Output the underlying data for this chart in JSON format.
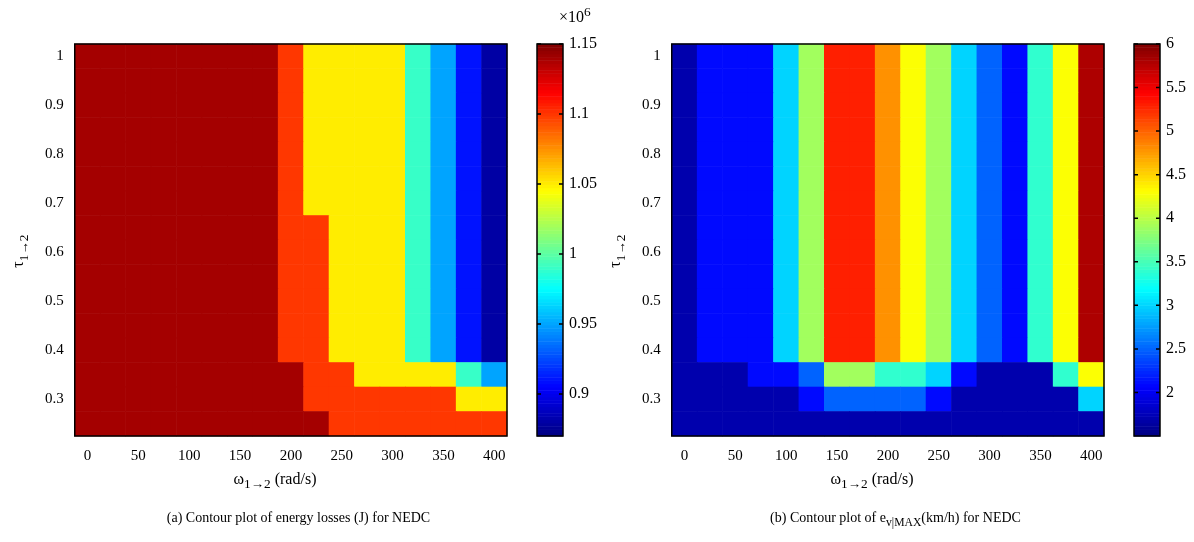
{
  "chart_data": [
    {
      "type": "heatmap",
      "title": "(a)  Contour plot of energy losses (J) for NEDC",
      "xlabel": "ω$_{1→2}$ (rad/s)",
      "ylabel": "τ$_{1→2}$",
      "clabel": "×10$^{6}$",
      "categories": [
        "0",
        null,
        "50",
        null,
        "100",
        null,
        "150",
        null,
        "200",
        null,
        "250",
        null,
        "300",
        null,
        "350",
        null,
        "400"
      ],
      "y_categories": [
        "1",
        null,
        "0.9",
        null,
        "0.8",
        null,
        "0.7",
        null,
        "0.6",
        null,
        "0.5",
        null,
        "0.4",
        null,
        "0.3",
        null
      ],
      "clim": [
        0.87,
        1.15
      ],
      "cticks": [
        0.9,
        0.95,
        1,
        1.05,
        1.1,
        1.15
      ],
      "cells": [
        [
          1.14,
          1.14,
          1.14,
          1.14,
          1.14,
          1.14,
          1.14,
          1.14,
          1.1,
          1.05,
          1.05,
          1.05,
          1.05,
          0.99,
          0.95,
          0.91,
          0.88
        ],
        [
          1.14,
          1.14,
          1.14,
          1.14,
          1.14,
          1.14,
          1.14,
          1.14,
          1.1,
          1.05,
          1.05,
          1.05,
          1.05,
          0.99,
          0.95,
          0.91,
          0.88
        ],
        [
          1.14,
          1.14,
          1.14,
          1.14,
          1.14,
          1.14,
          1.14,
          1.14,
          1.1,
          1.05,
          1.05,
          1.05,
          1.05,
          0.99,
          0.95,
          0.91,
          0.88
        ],
        [
          1.14,
          1.14,
          1.14,
          1.14,
          1.14,
          1.14,
          1.14,
          1.14,
          1.1,
          1.05,
          1.05,
          1.05,
          1.05,
          0.99,
          0.95,
          0.91,
          0.88
        ],
        [
          1.14,
          1.14,
          1.14,
          1.14,
          1.14,
          1.14,
          1.14,
          1.14,
          1.1,
          1.05,
          1.05,
          1.05,
          1.05,
          0.99,
          0.95,
          0.91,
          0.88
        ],
        [
          1.14,
          1.14,
          1.14,
          1.14,
          1.14,
          1.14,
          1.14,
          1.14,
          1.1,
          1.05,
          1.05,
          1.05,
          1.05,
          0.99,
          0.95,
          0.91,
          0.88
        ],
        [
          1.14,
          1.14,
          1.14,
          1.14,
          1.14,
          1.14,
          1.14,
          1.14,
          1.1,
          1.05,
          1.05,
          1.05,
          1.05,
          0.99,
          0.95,
          0.91,
          0.88
        ],
        [
          1.14,
          1.14,
          1.14,
          1.14,
          1.14,
          1.14,
          1.14,
          1.14,
          1.1,
          1.1,
          1.05,
          1.05,
          1.05,
          0.99,
          0.95,
          0.91,
          0.88
        ],
        [
          1.14,
          1.14,
          1.14,
          1.14,
          1.14,
          1.14,
          1.14,
          1.14,
          1.1,
          1.1,
          1.05,
          1.05,
          1.05,
          0.99,
          0.95,
          0.91,
          0.88
        ],
        [
          1.14,
          1.14,
          1.14,
          1.14,
          1.14,
          1.14,
          1.14,
          1.14,
          1.1,
          1.1,
          1.05,
          1.05,
          1.05,
          0.99,
          0.95,
          0.91,
          0.88
        ],
        [
          1.14,
          1.14,
          1.14,
          1.14,
          1.14,
          1.14,
          1.14,
          1.14,
          1.1,
          1.1,
          1.05,
          1.05,
          1.05,
          0.99,
          0.95,
          0.91,
          0.88
        ],
        [
          1.14,
          1.14,
          1.14,
          1.14,
          1.14,
          1.14,
          1.14,
          1.14,
          1.1,
          1.1,
          1.05,
          1.05,
          1.05,
          0.99,
          0.95,
          0.91,
          0.88
        ],
        [
          1.14,
          1.14,
          1.14,
          1.14,
          1.14,
          1.14,
          1.14,
          1.14,
          1.1,
          1.1,
          1.05,
          1.05,
          1.05,
          0.99,
          0.95,
          0.91,
          0.88
        ],
        [
          1.14,
          1.14,
          1.14,
          1.14,
          1.14,
          1.14,
          1.14,
          1.14,
          1.14,
          1.1,
          1.1,
          1.05,
          1.05,
          1.05,
          1.05,
          0.99,
          0.95
        ],
        [
          1.14,
          1.14,
          1.14,
          1.14,
          1.14,
          1.14,
          1.14,
          1.14,
          1.14,
          1.1,
          1.1,
          1.1,
          1.1,
          1.1,
          1.1,
          1.05,
          1.05
        ],
        [
          1.14,
          1.14,
          1.14,
          1.14,
          1.14,
          1.14,
          1.14,
          1.14,
          1.14,
          1.14,
          1.1,
          1.1,
          1.1,
          1.1,
          1.1,
          1.1,
          1.1
        ]
      ]
    },
    {
      "type": "heatmap",
      "title": "(b)  Contour plot of e$_{v|MAX}$(km/h) for NEDC",
      "xlabel": "ω$_{1→2}$ (rad/s)",
      "ylabel": "τ$_{1→2}$",
      "categories": [
        "0",
        null,
        "50",
        null,
        "100",
        null,
        "150",
        null,
        "200",
        null,
        "250",
        null,
        "300",
        null,
        "350",
        null,
        "400"
      ],
      "y_categories": [
        "1",
        null,
        "0.9",
        null,
        "0.8",
        null,
        "0.7",
        null,
        "0.6",
        null,
        "0.5",
        null,
        "0.4",
        null,
        "0.3",
        null
      ],
      "clim": [
        1.5,
        6
      ],
      "cticks": [
        2,
        2.5,
        3,
        3.5,
        4,
        4.5,
        5,
        5.5,
        6
      ],
      "cells": [
        [
          1.7,
          2.1,
          2.1,
          2.1,
          3.0,
          3.9,
          5.3,
          5.3,
          4.8,
          4.3,
          3.9,
          3.0,
          2.5,
          2.1,
          3.4,
          4.3,
          5.8
        ],
        [
          1.7,
          2.1,
          2.1,
          2.1,
          3.0,
          3.9,
          5.3,
          5.3,
          4.8,
          4.3,
          3.9,
          3.0,
          2.5,
          2.1,
          3.4,
          4.3,
          5.8
        ],
        [
          1.7,
          2.1,
          2.1,
          2.1,
          3.0,
          3.9,
          5.3,
          5.3,
          4.8,
          4.3,
          3.9,
          3.0,
          2.5,
          2.1,
          3.4,
          4.3,
          5.8
        ],
        [
          1.7,
          2.1,
          2.1,
          2.1,
          3.0,
          3.9,
          5.3,
          5.3,
          4.8,
          4.3,
          3.9,
          3.0,
          2.5,
          2.1,
          3.4,
          4.3,
          5.8
        ],
        [
          1.7,
          2.1,
          2.1,
          2.1,
          3.0,
          3.9,
          5.3,
          5.3,
          4.8,
          4.3,
          3.9,
          3.0,
          2.5,
          2.1,
          3.4,
          4.3,
          5.8
        ],
        [
          1.7,
          2.1,
          2.1,
          2.1,
          3.0,
          3.9,
          5.3,
          5.3,
          4.8,
          4.3,
          3.9,
          3.0,
          2.5,
          2.1,
          3.4,
          4.3,
          5.8
        ],
        [
          1.7,
          2.1,
          2.1,
          2.1,
          3.0,
          3.9,
          5.3,
          5.3,
          4.8,
          4.3,
          3.9,
          3.0,
          2.5,
          2.1,
          3.4,
          4.3,
          5.8
        ],
        [
          1.7,
          2.1,
          2.1,
          2.1,
          3.0,
          3.9,
          5.3,
          5.3,
          4.8,
          4.3,
          3.9,
          3.0,
          2.5,
          2.1,
          3.4,
          4.3,
          5.8
        ],
        [
          1.7,
          2.1,
          2.1,
          2.1,
          3.0,
          3.9,
          5.3,
          5.3,
          4.8,
          4.3,
          3.9,
          3.0,
          2.5,
          2.1,
          3.4,
          4.3,
          5.8
        ],
        [
          1.7,
          2.1,
          2.1,
          2.1,
          3.0,
          3.9,
          5.3,
          5.3,
          4.8,
          4.3,
          3.9,
          3.0,
          2.5,
          2.1,
          3.4,
          4.3,
          5.8
        ],
        [
          1.7,
          2.1,
          2.1,
          2.1,
          3.0,
          3.9,
          5.3,
          5.3,
          4.8,
          4.3,
          3.9,
          3.0,
          2.5,
          2.1,
          3.4,
          4.3,
          5.8
        ],
        [
          1.7,
          2.1,
          2.1,
          2.1,
          3.0,
          3.9,
          5.3,
          5.3,
          4.8,
          4.3,
          3.9,
          3.0,
          2.5,
          2.1,
          3.4,
          4.3,
          5.8
        ],
        [
          1.7,
          2.1,
          2.1,
          2.1,
          3.0,
          3.9,
          5.3,
          5.3,
          4.8,
          4.3,
          3.9,
          3.0,
          2.5,
          2.1,
          3.4,
          4.3,
          5.8
        ],
        [
          1.7,
          1.7,
          1.7,
          2.1,
          2.1,
          2.5,
          3.9,
          3.9,
          3.4,
          3.4,
          3.0,
          2.1,
          1.7,
          1.7,
          1.7,
          3.4,
          4.3
        ],
        [
          1.7,
          1.7,
          1.7,
          1.7,
          1.7,
          2.1,
          2.5,
          2.5,
          2.5,
          2.5,
          2.1,
          1.7,
          1.7,
          1.7,
          1.7,
          1.7,
          3.0
        ],
        [
          1.7,
          1.7,
          1.7,
          1.7,
          1.7,
          1.7,
          1.7,
          1.7,
          1.7,
          1.7,
          1.7,
          1.7,
          1.7,
          1.7,
          1.7,
          1.7,
          1.7
        ]
      ]
    }
  ]
}
